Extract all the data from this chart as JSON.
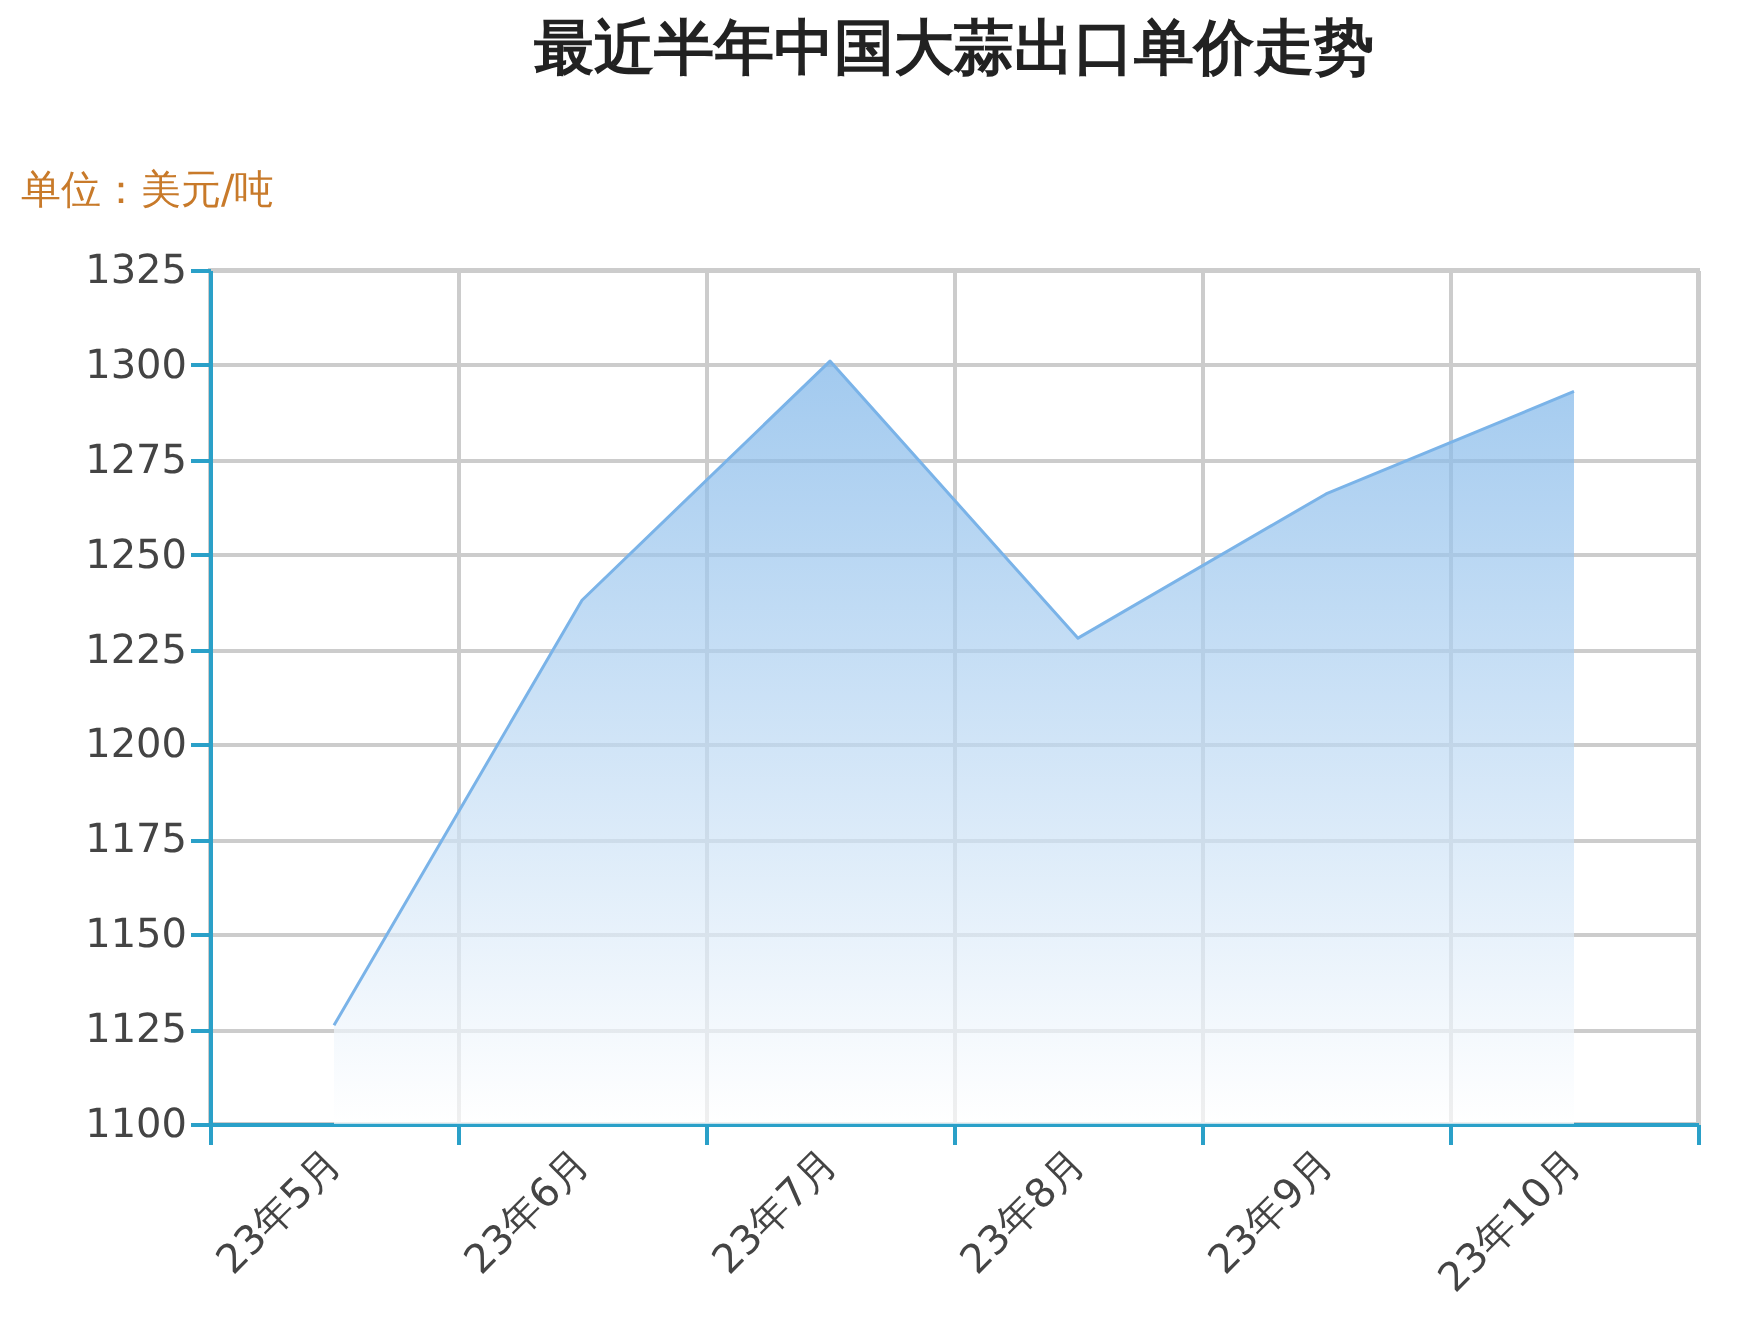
{
  "chart_data": {
    "type": "area",
    "title": "最近半年中国大蒜出口单价走势",
    "ylabel": "单位：美元/吨",
    "categories": [
      "23年5月",
      "23年6月",
      "23年7月",
      "23年8月",
      "23年9月",
      "23年10月"
    ],
    "series": [
      {
        "color": "#7ab3e8",
        "values": [
          1126,
          1238,
          1301,
          1228,
          1266,
          1293
        ]
      }
    ],
    "ylim": [
      1100,
      1325
    ],
    "yticks": [
      1100,
      1125,
      1150,
      1175,
      1200,
      1225,
      1250,
      1275,
      1300,
      1325
    ],
    "grid": true
  }
}
